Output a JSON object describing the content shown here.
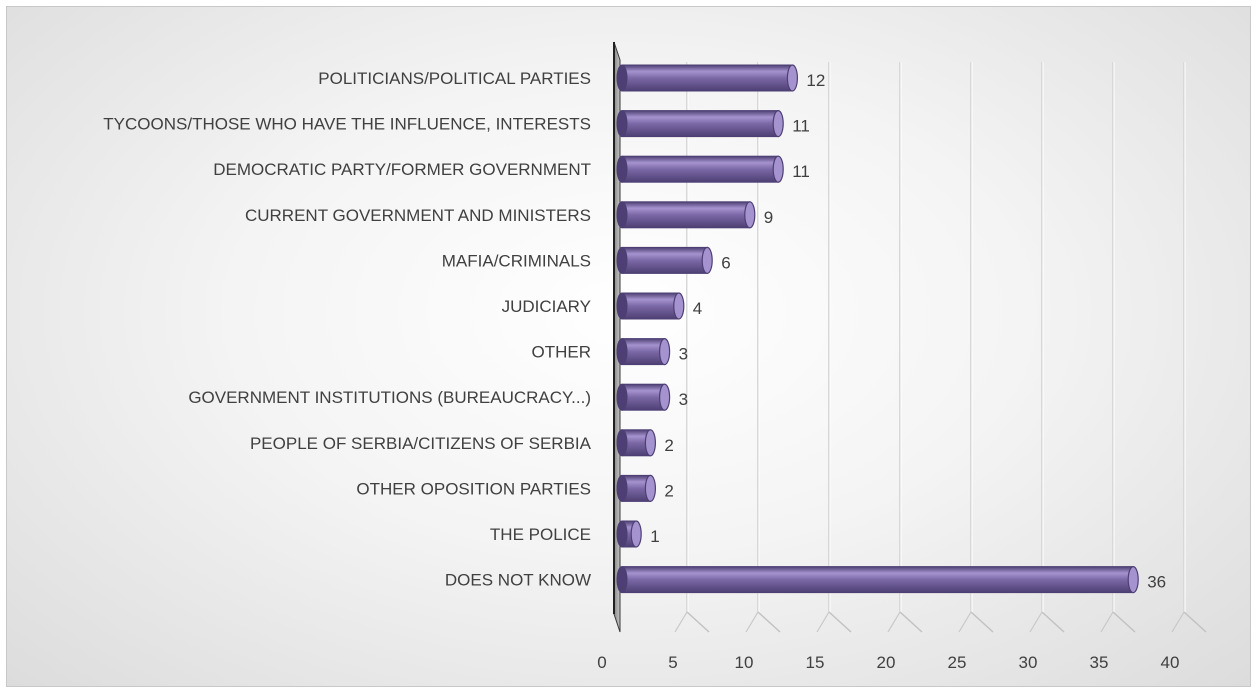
{
  "chart_data": {
    "type": "bar",
    "orientation": "horizontal",
    "style": "3d-cylinder",
    "categories": [
      "POLITICIANS/POLITICAL PARTIES",
      "TYCOONS/THOSE WHO HAVE THE INFLUENCE, INTERESTS",
      "DEMOCRATIC PARTY/FORMER GOVERNMENT",
      "CURRENT GOVERNMENT AND MINISTERS",
      "MAFIA/CRIMINALS",
      "JUDICIARY",
      "OTHER",
      "GOVERNMENT INSTITUTIONS (BUREAUCRACY...)",
      "PEOPLE OF SERBIA/CITIZENS OF SERBIA",
      "OTHER OPOSITION PARTIES",
      "THE POLICE",
      "DOES NOT KNOW"
    ],
    "values": [
      12,
      11,
      11,
      9,
      6,
      4,
      3,
      3,
      2,
      2,
      1,
      36
    ],
    "value_labels": [
      "12",
      "11",
      "11",
      "9",
      "6",
      "4",
      "3",
      "3",
      "2",
      "2",
      "1",
      "36"
    ],
    "xlim": [
      0,
      40
    ],
    "xticks": [
      "0",
      "5",
      "10",
      "15",
      "20",
      "25",
      "30",
      "35",
      "40"
    ],
    "grid": true,
    "legend": "none",
    "colors": {
      "bar_main": "#7b68a6",
      "bar_dark": "#4d3f73",
      "bar_light": "#a593cf",
      "wall": "#9a9a9a",
      "text": "#404040"
    }
  }
}
